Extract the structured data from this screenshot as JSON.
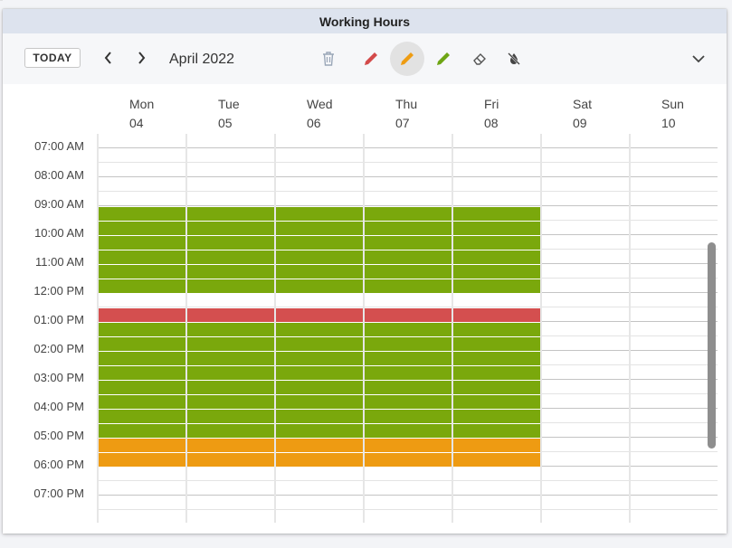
{
  "window": {
    "title": "Working Hours"
  },
  "toolbar": {
    "today_label": "TODAY",
    "month_label": "April 2022",
    "tools": [
      {
        "name": "delete-tool",
        "icon": "trash-icon",
        "color": "#9aa7b8"
      },
      {
        "name": "pencil-red-tool",
        "icon": "pencil-icon",
        "color": "#d34a4a"
      },
      {
        "name": "pencil-orange-tool",
        "icon": "pencil-icon",
        "color": "#ee9c12",
        "active": true
      },
      {
        "name": "pencil-green-tool",
        "icon": "pencil-icon",
        "color": "#6ea514"
      },
      {
        "name": "eraser-tool",
        "icon": "eraser-icon",
        "color": "#555555"
      },
      {
        "name": "no-paint-tool",
        "icon": "slashed-drop-icon",
        "color": "#444444"
      }
    ]
  },
  "days": [
    {
      "name": "Mon",
      "date": "04"
    },
    {
      "name": "Tue",
      "date": "05"
    },
    {
      "name": "Wed",
      "date": "06"
    },
    {
      "name": "Thu",
      "date": "07"
    },
    {
      "name": "Fri",
      "date": "08"
    },
    {
      "name": "Sat",
      "date": "09"
    },
    {
      "name": "Sun",
      "date": "10"
    }
  ],
  "time_labels": [
    "07:00 AM",
    "08:00 AM",
    "09:00 AM",
    "10:00 AM",
    "11:00 AM",
    "12:00 PM",
    "01:00 PM",
    "02:00 PM",
    "03:00 PM",
    "04:00 PM",
    "05:00 PM",
    "06:00 PM",
    "07:00 PM"
  ],
  "colors": {
    "green": "#7aa80c",
    "red": "#d44f4f",
    "orange": "#ee9b12"
  },
  "schedule": {
    "days": [
      0,
      1,
      2,
      3,
      4
    ],
    "slots": [
      {
        "start": "09:00",
        "end": "12:00",
        "color": "green"
      },
      {
        "start": "12:30",
        "end": "13:00",
        "color": "red"
      },
      {
        "start": "13:00",
        "end": "17:00",
        "color": "green"
      },
      {
        "start": "17:00",
        "end": "18:00",
        "color": "orange"
      }
    ]
  }
}
